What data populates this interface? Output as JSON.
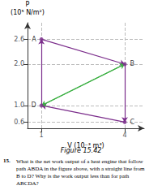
{
  "chart_data": {
    "type": "line",
    "xlabel": "V (10⁻³ m³)",
    "ylabel": "P\n(10⁵ N/m²)",
    "xlim": [
      0.5,
      4.7
    ],
    "ylim": [
      0.45,
      3.0
    ],
    "xticks": [
      1,
      4
    ],
    "yticks": [
      0.6,
      {
        "value": 1.0,
        "label": "1.0"
      },
      {
        "value": 2.0,
        "label": "2.0"
      },
      2.6
    ],
    "grid": true,
    "series": [
      {
        "color": "#7B2D8B",
        "x": [
          1.0,
          4.0,
          4.0,
          1.0,
          1.0
        ],
        "values": [
          2.6,
          2.0,
          0.6,
          1.0,
          2.6
        ]
      },
      {
        "color": "#3CB043",
        "x": [
          4.0,
          1.0
        ],
        "values": [
          2.0,
          1.0
        ]
      },
      {
        "color": "#3CB043",
        "x": [
          1.0,
          4.0
        ],
        "values": [
          1.0,
          2.0
        ]
      }
    ],
    "points": {
      "color": "#7B2D8B",
      "labels": [
        "A",
        "B",
        "C",
        "D"
      ],
      "x": [
        1.0,
        4.0,
        4.0,
        1.0
      ],
      "values": [
        2.6,
        2.0,
        0.6,
        1.0
      ]
    },
    "annotations": [
      "Figure 15.42",
      "15.",
      "What is the net work output of a heat engine that follow\npath ABDA in the figure above, with a straight line from\nB to D? Why is the work output less than for path\nABCDA?"
    ]
  }
}
